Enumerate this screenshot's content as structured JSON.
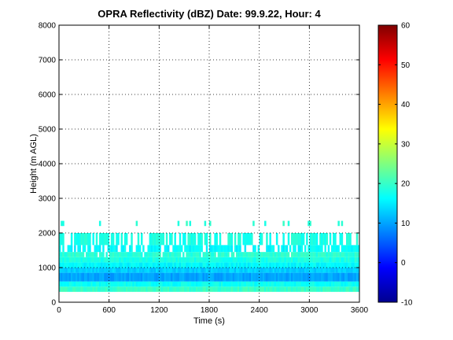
{
  "chart_data": {
    "type": "heatmap",
    "title": "OPRA Reflectivity (dBZ)  Date: 99.9.22, Hour: 4",
    "xlabel": "Time (s)",
    "ylabel": "Height (m AGL)",
    "xlim": [
      0,
      3600
    ],
    "ylim": [
      0,
      8000
    ],
    "x_ticks": [
      "0",
      "600",
      "1200",
      "1800",
      "2400",
      "3000",
      "3600"
    ],
    "y_ticks": [
      "0",
      "1000",
      "2000",
      "3000",
      "4000",
      "5000",
      "6000",
      "7000",
      "8000"
    ],
    "grid": true,
    "colorbar": {
      "colormap": "jet",
      "range": [
        -10,
        60
      ],
      "ticks": [
        "-10",
        "0",
        "10",
        "20",
        "30",
        "40",
        "50",
        "60"
      ]
    },
    "layers": [
      {
        "y0": 300,
        "y1": 450,
        "dbz": 20,
        "coverage": "continuous"
      },
      {
        "y0": 450,
        "y1": 600,
        "dbz": 17,
        "coverage": "continuous"
      },
      {
        "y0": 600,
        "y1": 850,
        "dbz": 10,
        "coverage": "continuous"
      },
      {
        "y0": 850,
        "y1": 1000,
        "dbz": 13,
        "coverage": "continuous"
      },
      {
        "y0": 1000,
        "y1": 1150,
        "dbz": 16,
        "coverage": "continuous"
      },
      {
        "y0": 1150,
        "y1": 1300,
        "dbz": 18,
        "coverage": "continuous"
      },
      {
        "y0": 1300,
        "y1": 1450,
        "dbz": 19,
        "coverage": "mostly"
      },
      {
        "y0": 1450,
        "y1": 1650,
        "dbz": 16,
        "coverage": "broken"
      },
      {
        "y0": 1650,
        "y1": 2000,
        "dbz": 18,
        "coverage": "scattered"
      },
      {
        "y0": 2200,
        "y1": 2350,
        "dbz": 19,
        "coverage": "isolated"
      }
    ]
  }
}
